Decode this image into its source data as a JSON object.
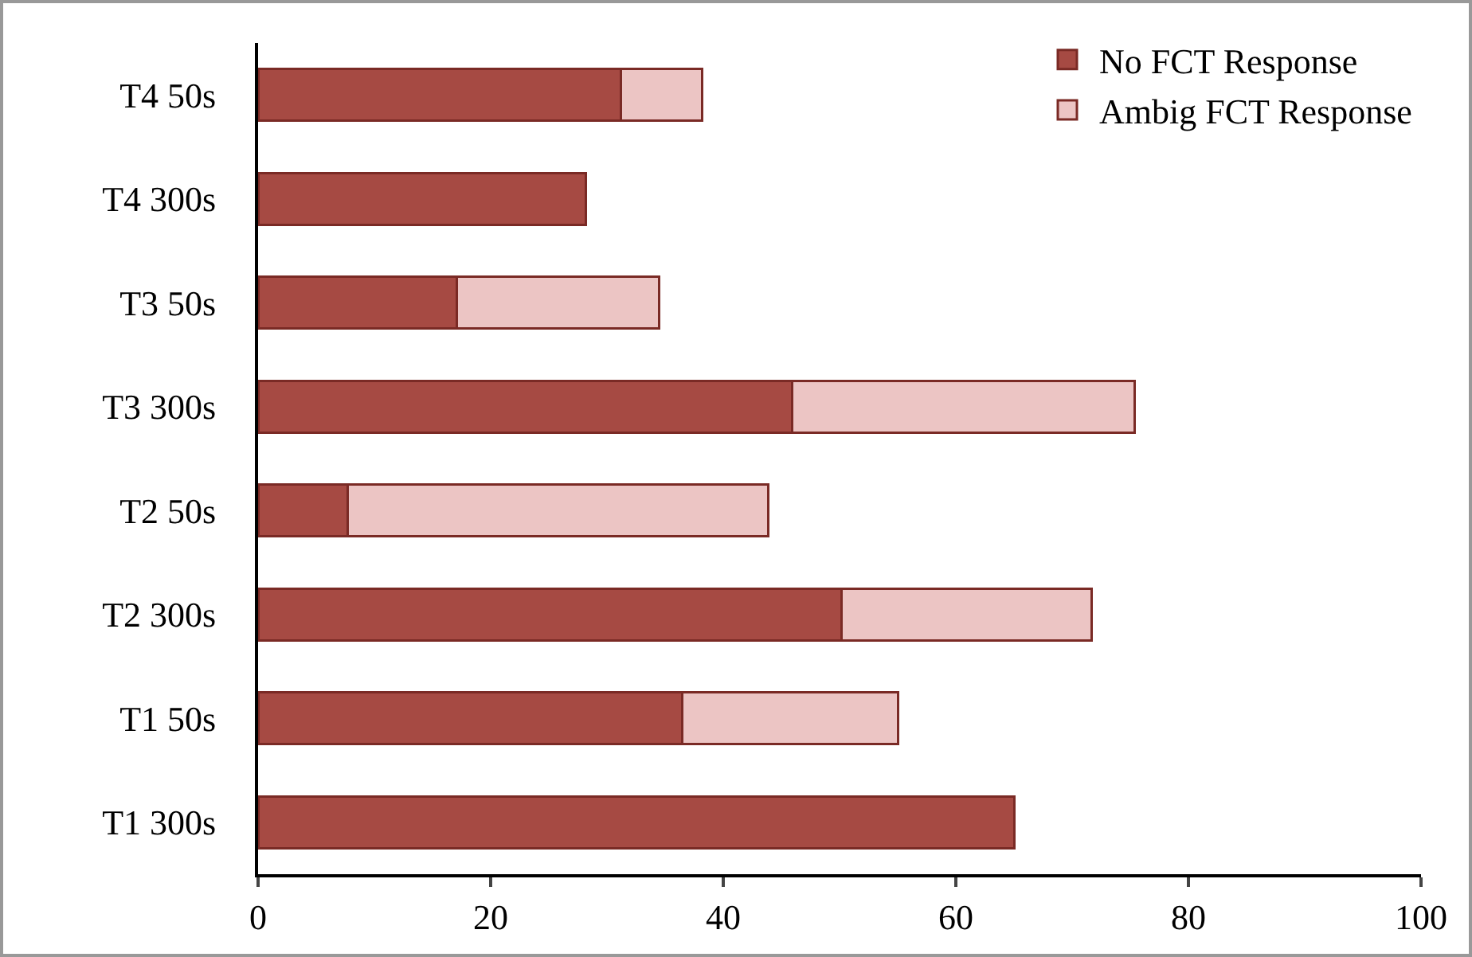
{
  "chart_data": {
    "type": "bar",
    "orientation": "horizontal",
    "stacked": true,
    "categories": [
      "T4 50s",
      "T4 300s",
      "T3 50s",
      "T3 300s",
      "T2 50s",
      "T2 300s",
      "T1 50s",
      "T1 300s"
    ],
    "series": [
      {
        "name": "No FCT Response",
        "color": "#a64a43",
        "values": [
          31.2,
          28.2,
          17.1,
          45.9,
          7.7,
          50.2,
          36.5,
          65.0
        ]
      },
      {
        "name": "Ambig FCT Response",
        "color": "#ecc5c4",
        "values": [
          7.0,
          null,
          17.4,
          29.5,
          36.2,
          21.5,
          18.5,
          null
        ]
      }
    ],
    "xlim": [
      0,
      100
    ],
    "xticks": [
      0,
      20,
      40,
      60,
      80,
      100
    ],
    "grid": false,
    "legend": "top right"
  }
}
